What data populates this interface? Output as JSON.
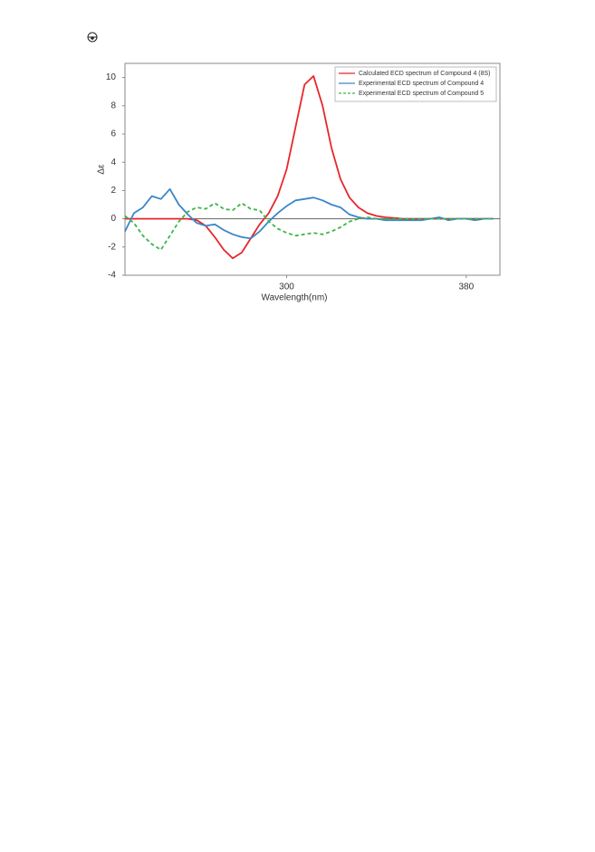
{
  "chart_data": {
    "type": "line",
    "y_label": "Δε",
    "x_label": "Wavelength(nm)",
    "xlim": [
      228,
      395
    ],
    "xticks": [
      300,
      380
    ],
    "ylim": [
      -4,
      11
    ],
    "yticks": [
      10,
      8,
      6,
      4,
      2,
      0,
      -2,
      -4
    ],
    "legend": "top-right",
    "x": [
      228,
      232,
      236,
      240,
      244,
      248,
      252,
      256,
      260,
      264,
      268,
      272,
      276,
      280,
      284,
      288,
      292,
      296,
      300,
      304,
      308,
      312,
      316,
      320,
      324,
      328,
      332,
      336,
      340,
      344,
      348,
      352,
      356,
      360,
      364,
      368,
      372,
      376,
      380,
      384,
      388,
      392
    ],
    "series": [
      {
        "name": "Calculated ECD spectrum of Compound 4 (8S)",
        "color": "#e8262b",
        "dash": false,
        "values": [
          0,
          0,
          0,
          0,
          0,
          0,
          0,
          0,
          -0.1,
          -0.5,
          -1.3,
          -2.2,
          -2.8,
          -2.4,
          -1.4,
          -0.4,
          0.4,
          1.6,
          3.5,
          6.5,
          9.5,
          10.1,
          8.0,
          5.0,
          2.8,
          1.5,
          0.8,
          0.4,
          0.2,
          0.1,
          0.05,
          0,
          0,
          0,
          0,
          0,
          0,
          0,
          0,
          0,
          0,
          0
        ]
      },
      {
        "name": "Experimental ECD spectrum of Compound 4",
        "color": "#3b86c8",
        "dash": false,
        "values": [
          -0.9,
          0.4,
          0.8,
          1.6,
          1.4,
          2.1,
          1.0,
          0.3,
          -0.3,
          -0.5,
          -0.4,
          -0.8,
          -1.1,
          -1.3,
          -1.4,
          -0.9,
          -0.2,
          0.4,
          0.9,
          1.3,
          1.4,
          1.5,
          1.3,
          1.0,
          0.8,
          0.3,
          0.1,
          0,
          0,
          -0.1,
          -0.1,
          -0.1,
          -0.1,
          -0.1,
          0,
          0.1,
          -0.1,
          0,
          0,
          -0.1,
          0,
          0
        ]
      },
      {
        "name": "Experimental ECD spectrum of Compound 5",
        "color": "#3cb54a",
        "dash": true,
        "values": [
          0.2,
          -0.3,
          -1.2,
          -1.8,
          -2.2,
          -1.2,
          -0.2,
          0.5,
          0.8,
          0.7,
          1.1,
          0.7,
          0.6,
          1.1,
          0.7,
          0.6,
          -0.2,
          -0.7,
          -1.0,
          -1.2,
          -1.1,
          -1.0,
          -1.1,
          -0.9,
          -0.6,
          -0.2,
          0,
          0.1,
          0,
          0,
          0,
          0,
          0,
          0,
          0,
          0,
          0,
          0,
          0,
          0,
          0,
          0
        ]
      }
    ]
  }
}
